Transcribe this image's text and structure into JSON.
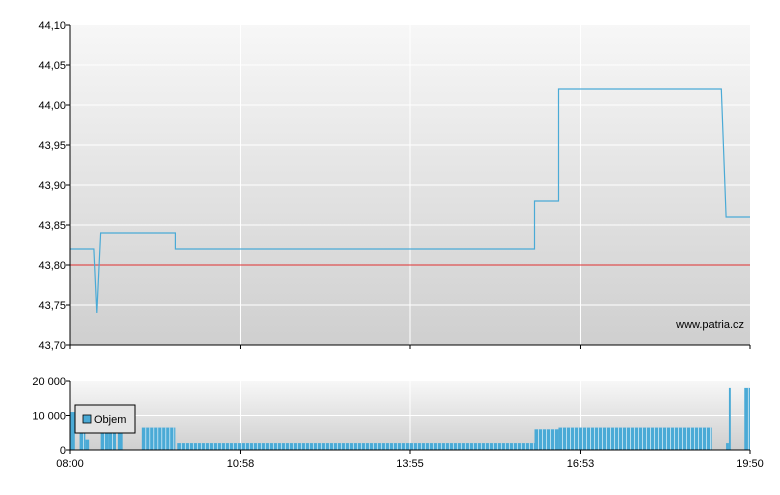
{
  "chart_data": [
    {
      "type": "line",
      "y_tick_labels": [
        "44,10",
        "44,05",
        "44,00",
        "43,95",
        "43,90",
        "43,85",
        "43,80",
        "43,75",
        "43,70"
      ],
      "ylim": [
        43.7,
        44.1
      ],
      "x_tick_labels": [
        "08:00",
        "10:58",
        "13:55",
        "16:53",
        "19:50"
      ],
      "watermark": "www.patria.cz",
      "reference_line": {
        "value": 43.8,
        "color": "#e03030"
      },
      "series": [
        {
          "color": "#4aaad6",
          "points": [
            [
              "08:00",
              43.82
            ],
            [
              "08:25",
              43.82
            ],
            [
              "08:28",
              43.74
            ],
            [
              "08:32",
              43.84
            ],
            [
              "09:50",
              43.84
            ],
            [
              "09:50",
              43.82
            ],
            [
              "16:05",
              43.82
            ],
            [
              "16:05",
              43.88
            ],
            [
              "16:30",
              43.88
            ],
            [
              "16:30",
              44.02
            ],
            [
              "19:20",
              44.02
            ],
            [
              "19:25",
              43.86
            ],
            [
              "19:50",
              43.86
            ]
          ]
        }
      ]
    },
    {
      "type": "bar",
      "y_tick_labels": [
        "20 000",
        "10 000",
        "0"
      ],
      "ylim": [
        0,
        20000
      ],
      "x_tick_labels": [
        "08:00",
        "10:58",
        "13:55",
        "16:53",
        "19:50"
      ],
      "legend": {
        "label": "Objem",
        "placement": "top-left"
      },
      "series": [
        {
          "name": "Objem",
          "color": "#4aaad6",
          "segments": [
            {
              "from": "08:00",
              "to": "08:05",
              "value": 11000
            },
            {
              "from": "08:10",
              "to": "08:16",
              "value": 7000
            },
            {
              "from": "08:16",
              "to": "08:20",
              "value": 3000
            },
            {
              "from": "08:32",
              "to": "08:40",
              "value": 11000
            },
            {
              "from": "08:40",
              "to": "08:48",
              "value": 7000
            },
            {
              "from": "08:50",
              "to": "08:55",
              "value": 11000
            },
            {
              "from": "09:15",
              "to": "09:50",
              "value": 6500
            },
            {
              "from": "09:52",
              "to": "16:05",
              "value": 2000
            },
            {
              "from": "16:05",
              "to": "16:30",
              "value": 6000
            },
            {
              "from": "16:30",
              "to": "19:10",
              "value": 6500
            },
            {
              "from": "19:25",
              "to": "19:28",
              "value": 2000
            },
            {
              "from": "19:28",
              "to": "19:30",
              "value": 18000
            },
            {
              "from": "19:44",
              "to": "19:50",
              "value": 18000
            }
          ]
        }
      ]
    }
  ]
}
